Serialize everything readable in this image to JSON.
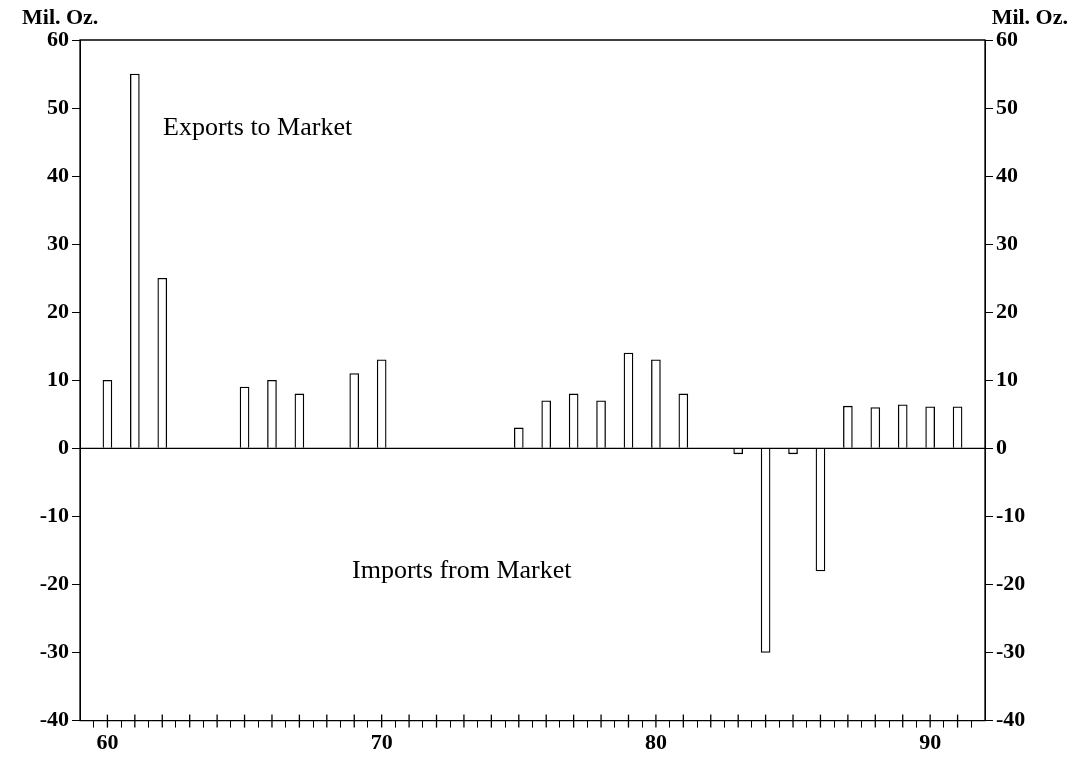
{
  "chart_data": {
    "type": "bar",
    "ylabel": "Mil. Oz.",
    "y2label": "Mil. Oz.",
    "x": [
      60,
      61,
      62,
      65,
      66,
      67,
      69,
      70,
      75,
      76,
      77,
      78,
      79,
      80,
      81,
      83,
      84,
      85,
      86,
      87,
      88,
      89,
      90,
      91
    ],
    "values": [
      10,
      55,
      25,
      9,
      10,
      8,
      11,
      13,
      3,
      7,
      8,
      7,
      14,
      13,
      8,
      -0.8,
      -30,
      -0.8,
      -18,
      6.2,
      6.0,
      6.4,
      6.1,
      6.1
    ],
    "color": "#ffffff",
    "xlim": [
      59,
      92
    ],
    "xticks": [
      60,
      {
        "value": 61,
        "label": null
      },
      {
        "value": 62,
        "label": null
      },
      {
        "value": 63,
        "label": null
      },
      {
        "value": 64,
        "label": null
      },
      {
        "value": 65,
        "label": null
      },
      {
        "value": 66,
        "label": null
      },
      {
        "value": 67,
        "label": null
      },
      {
        "value": 68,
        "label": null
      },
      {
        "value": 69,
        "label": null
      },
      70,
      {
        "value": 71,
        "label": null
      },
      {
        "value": 72,
        "label": null
      },
      {
        "value": 73,
        "label": null
      },
      {
        "value": 74,
        "label": null
      },
      {
        "value": 75,
        "label": null
      },
      {
        "value": 76,
        "label": null
      },
      {
        "value": 77,
        "label": null
      },
      {
        "value": 78,
        "label": null
      },
      {
        "value": 79,
        "label": null
      },
      80,
      {
        "value": 81,
        "label": null
      },
      {
        "value": 82,
        "label": null
      },
      {
        "value": 83,
        "label": null
      },
      {
        "value": 84,
        "label": null
      },
      {
        "value": 85,
        "label": null
      },
      {
        "value": 86,
        "label": null
      },
      {
        "value": 87,
        "label": null
      },
      {
        "value": 88,
        "label": null
      },
      {
        "value": 89,
        "label": null
      },
      90,
      {
        "value": 91,
        "label": null
      }
    ],
    "ylim": [
      -40,
      60
    ],
    "yticks": [
      -40,
      -30,
      -20,
      -10,
      0,
      10,
      20,
      30,
      40,
      50,
      60
    ],
    "y2lim": [
      -40,
      60
    ],
    "y2ticks": [
      -40,
      -30,
      -20,
      -10,
      0,
      10,
      20,
      30,
      40,
      50,
      60
    ],
    "ref_lines": [
      {
        "axis": "y",
        "value": 0
      }
    ],
    "annotations": [
      "Exports to Market",
      "Imports from Market"
    ],
    "grid": false,
    "legend": false
  }
}
